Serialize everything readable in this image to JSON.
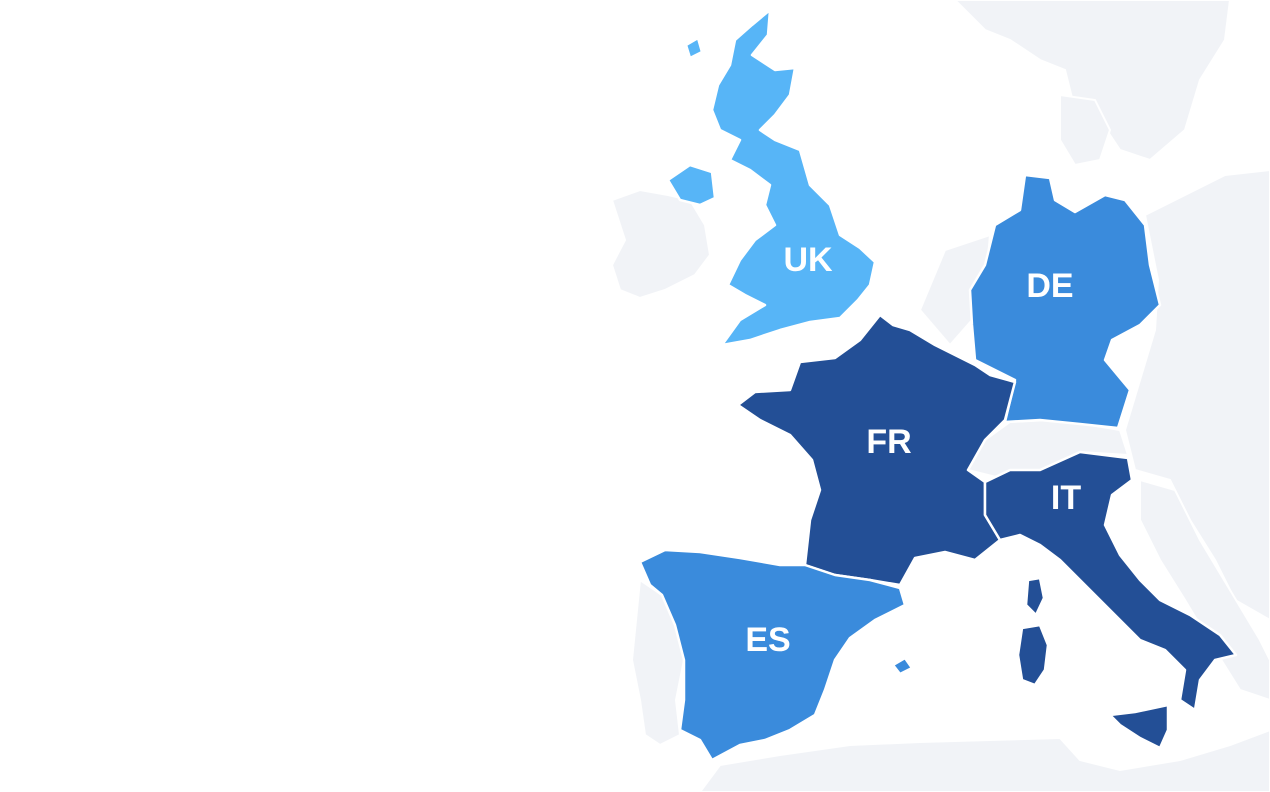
{
  "countries": [
    {
      "code": "UK",
      "label": "UK",
      "color": "#57b5f7"
    },
    {
      "code": "DE",
      "label": "DE",
      "color": "#3a8bdc"
    },
    {
      "code": "FR",
      "label": "FR",
      "color": "#234f96"
    },
    {
      "code": "IT",
      "label": "IT",
      "color": "#234f96"
    },
    {
      "code": "ES",
      "label": "ES",
      "color": "#3a8bdc"
    }
  ],
  "background_land_color": "#f1f3f7"
}
